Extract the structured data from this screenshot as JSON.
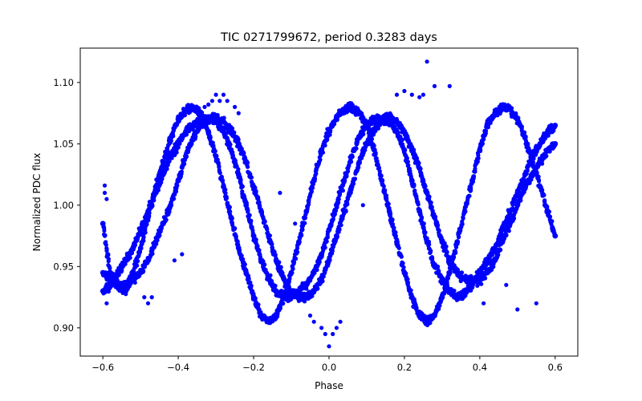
{
  "chart_data": {
    "type": "scatter",
    "title": "TIC 0271799672, period 0.3283 days",
    "xlabel": "Phase",
    "ylabel": "Normalized PDC flux",
    "xlim": [
      -0.66,
      0.66
    ],
    "ylim": [
      0.877,
      1.128
    ],
    "xticks": [
      -0.6,
      -0.4,
      -0.2,
      0.0,
      0.2,
      0.4,
      0.6
    ],
    "xtick_labels": [
      "−0.6",
      "−0.4",
      "−0.2",
      "0.0",
      "0.2",
      "0.4",
      "0.6"
    ],
    "yticks": [
      0.9,
      0.95,
      1.0,
      1.05,
      1.1
    ],
    "ytick_labels": [
      "0.90",
      "0.95",
      "1.00",
      "1.05",
      "1.10"
    ],
    "grid": false,
    "legend": "none",
    "marker_color": "#0000ff",
    "series": [
      {
        "x": [
          -0.6,
          -0.58,
          -0.56,
          -0.54,
          -0.52,
          -0.5,
          -0.48,
          -0.46,
          -0.44,
          -0.42,
          -0.4,
          -0.38,
          -0.36,
          -0.34,
          -0.32,
          -0.3,
          -0.28,
          -0.26,
          -0.24,
          -0.22,
          -0.2,
          -0.18,
          -0.16,
          -0.14,
          -0.12,
          -0.1,
          -0.08,
          -0.06,
          -0.04,
          -0.02,
          0.0,
          0.02,
          0.04,
          0.06,
          0.08,
          0.1,
          0.12,
          0.14,
          0.16,
          0.18,
          0.2,
          0.22,
          0.24,
          0.26,
          0.28,
          0.3,
          0.32,
          0.34,
          0.36,
          0.38,
          0.4,
          0.42,
          0.44,
          0.46,
          0.48,
          0.5,
          0.52,
          0.54,
          0.56,
          0.58,
          0.6
        ],
        "y": [
          0.985,
          0.945,
          0.935,
          0.93,
          0.945,
          0.965,
          0.99,
          1.015,
          1.035,
          1.055,
          1.07,
          1.078,
          1.08,
          1.075,
          1.06,
          1.04,
          1.015,
          0.99,
          0.965,
          0.945,
          0.925,
          0.91,
          0.905,
          0.91,
          0.925,
          0.945,
          0.97,
          0.995,
          1.02,
          1.045,
          1.06,
          1.072,
          1.078,
          1.08,
          1.075,
          1.065,
          1.045,
          1.02,
          0.995,
          0.97,
          0.945,
          0.925,
          0.91,
          0.905,
          0.91,
          0.925,
          0.945,
          0.97,
          0.995,
          1.02,
          1.045,
          1.065,
          1.075,
          1.08,
          1.078,
          1.07,
          1.055,
          1.035,
          1.015,
          0.995,
          0.975
        ]
      },
      {
        "x": [
          -0.6,
          -0.58,
          -0.56,
          -0.54,
          -0.52,
          -0.5,
          -0.48,
          -0.46,
          -0.44,
          -0.42,
          -0.4,
          -0.38,
          -0.36,
          -0.34,
          -0.32,
          -0.3,
          -0.28,
          -0.26,
          -0.24,
          -0.22,
          -0.2,
          -0.18,
          -0.16,
          -0.14,
          -0.12,
          -0.1,
          -0.08,
          -0.06,
          -0.04,
          -0.02,
          0.0,
          0.02,
          0.04,
          0.06,
          0.08,
          0.1,
          0.12,
          0.14,
          0.16,
          0.18,
          0.2,
          0.22,
          0.24,
          0.26,
          0.28,
          0.3,
          0.32,
          0.34,
          0.36,
          0.38,
          0.4,
          0.42,
          0.44,
          0.46,
          0.48,
          0.5,
          0.52,
          0.54,
          0.56,
          0.58,
          0.6
        ],
        "y": [
          0.93,
          0.935,
          0.945,
          0.955,
          0.965,
          0.98,
          0.995,
          1.01,
          1.025,
          1.04,
          1.05,
          1.06,
          1.065,
          1.07,
          1.07,
          1.068,
          1.06,
          1.045,
          1.025,
          1.0,
          0.975,
          0.955,
          0.94,
          0.93,
          0.925,
          0.925,
          0.93,
          0.935,
          0.945,
          0.96,
          0.98,
          1.0,
          1.02,
          1.04,
          1.055,
          1.065,
          1.07,
          1.07,
          1.068,
          1.06,
          1.045,
          1.02,
          0.995,
          0.97,
          0.95,
          0.94,
          0.93,
          0.925,
          0.928,
          0.935,
          0.945,
          0.955,
          0.965,
          0.98,
          0.995,
          1.01,
          1.025,
          1.04,
          1.05,
          1.06,
          1.065
        ]
      },
      {
        "x": [
          -0.6,
          -0.58,
          -0.56,
          -0.54,
          -0.52,
          -0.5,
          -0.48,
          -0.46,
          -0.44,
          -0.42,
          -0.4,
          -0.38,
          -0.36,
          -0.34,
          -0.32,
          -0.3,
          -0.28,
          -0.26,
          -0.24,
          -0.22,
          -0.2,
          -0.18,
          -0.16,
          -0.14,
          -0.12,
          -0.1,
          -0.08,
          -0.06,
          -0.04,
          -0.02,
          0.0,
          0.02,
          0.04,
          0.06,
          0.08,
          0.1,
          0.12,
          0.14,
          0.16,
          0.18,
          0.2,
          0.22,
          0.24,
          0.26,
          0.28,
          0.3,
          0.32,
          0.34,
          0.36,
          0.38,
          0.4,
          0.42,
          0.44,
          0.46,
          0.48,
          0.5,
          0.52,
          0.54,
          0.56,
          0.58,
          0.6
        ],
        "y": [
          0.945,
          0.94,
          0.935,
          0.935,
          0.94,
          0.945,
          0.955,
          0.97,
          0.985,
          1.0,
          1.02,
          1.04,
          1.055,
          1.065,
          1.07,
          1.072,
          1.068,
          1.06,
          1.05,
          1.035,
          1.015,
          0.995,
          0.975,
          0.955,
          0.94,
          0.93,
          0.925,
          0.925,
          0.93,
          0.94,
          0.955,
          0.975,
          0.995,
          1.015,
          1.035,
          1.05,
          1.062,
          1.07,
          1.072,
          1.068,
          1.06,
          1.045,
          1.03,
          1.01,
          0.99,
          0.97,
          0.955,
          0.945,
          0.94,
          0.938,
          0.94,
          0.945,
          0.955,
          0.97,
          0.985,
          1.0,
          1.015,
          1.025,
          1.035,
          1.045,
          1.05
        ]
      },
      {
        "x": [
          -0.595,
          -0.595,
          -0.59,
          -0.59,
          -0.49,
          -0.48,
          -0.47,
          -0.41,
          -0.39,
          -0.345,
          -0.33,
          -0.32,
          -0.31,
          -0.3,
          -0.29,
          -0.28,
          -0.27,
          -0.25,
          -0.24,
          -0.13,
          -0.09,
          -0.05,
          -0.04,
          -0.02,
          -0.01,
          0.0,
          0.01,
          0.02,
          0.03,
          0.09,
          0.18,
          0.2,
          0.22,
          0.24,
          0.25,
          0.26,
          0.28,
          0.32,
          0.41,
          0.47,
          0.5,
          0.55
        ],
        "y": [
          1.016,
          1.01,
          1.005,
          0.92,
          0.925,
          0.92,
          0.925,
          0.955,
          0.96,
          1.07,
          1.08,
          1.082,
          1.085,
          1.09,
          1.085,
          1.09,
          1.085,
          1.08,
          1.075,
          1.01,
          0.985,
          0.91,
          0.905,
          0.9,
          0.895,
          0.885,
          0.895,
          0.9,
          0.905,
          1.0,
          1.09,
          1.093,
          1.09,
          1.088,
          1.09,
          1.117,
          1.097,
          1.097,
          0.92,
          0.935,
          0.915,
          0.92
        ]
      }
    ]
  }
}
